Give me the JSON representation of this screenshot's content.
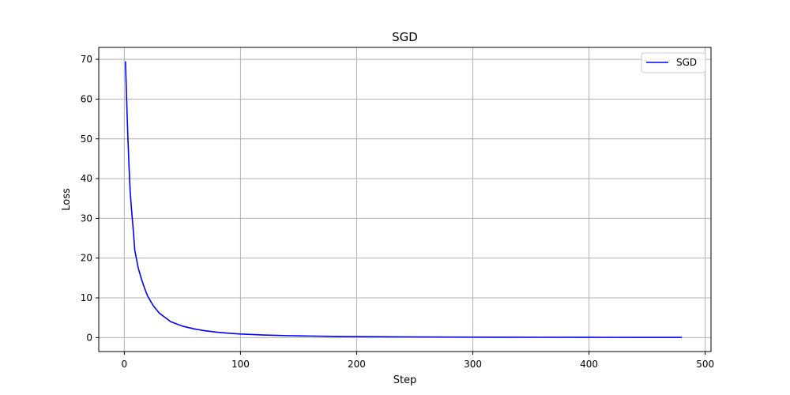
{
  "chart_data": {
    "type": "line",
    "title": "SGD",
    "xlabel": "Step",
    "ylabel": "Loss",
    "xlim": [
      -22,
      505
    ],
    "ylim": [
      -3.5,
      73
    ],
    "xticks": [
      0,
      100,
      200,
      300,
      400,
      500
    ],
    "yticks": [
      0,
      10,
      20,
      30,
      40,
      50,
      60,
      70
    ],
    "grid": true,
    "legend_position": "top-right",
    "series": [
      {
        "name": "SGD",
        "color": "#0000ff",
        "x": [
          1,
          2,
          3,
          4,
          5,
          6,
          7,
          8,
          9,
          10,
          12,
          15,
          18,
          20,
          25,
          30,
          35,
          40,
          50,
          60,
          70,
          80,
          90,
          100,
          120,
          140,
          160,
          180,
          200,
          240,
          280,
          320,
          360,
          400,
          440,
          480
        ],
        "y": [
          69.5,
          60.0,
          51.0,
          43.5,
          37.0,
          33.0,
          29.5,
          26.0,
          22.0,
          20.5,
          17.5,
          14.5,
          12.0,
          10.5,
          8.0,
          6.2,
          5.1,
          4.0,
          2.9,
          2.2,
          1.7,
          1.35,
          1.1,
          0.9,
          0.65,
          0.5,
          0.4,
          0.32,
          0.27,
          0.2,
          0.15,
          0.12,
          0.1,
          0.08,
          0.07,
          0.06
        ]
      }
    ]
  }
}
